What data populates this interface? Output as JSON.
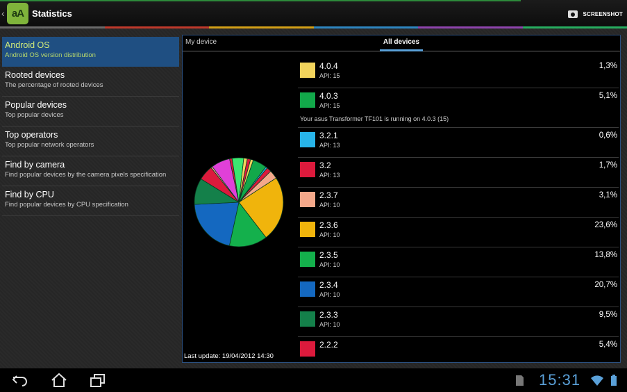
{
  "app": {
    "title": "Statistics",
    "logo_text": "aA",
    "screenshot_label": "SCREENSHOT"
  },
  "sidebar": {
    "items": [
      {
        "title": "Android OS",
        "subtitle": "Android OS version distribution"
      },
      {
        "title": "Rooted devices",
        "subtitle": "The percentage of rooted devices"
      },
      {
        "title": "Popular devices",
        "subtitle": "Top popular devices"
      },
      {
        "title": "Top operators",
        "subtitle": "Top popular network operators"
      },
      {
        "title": "Find by camera",
        "subtitle": "Find popular devices by the camera pixels specification"
      },
      {
        "title": "Find by CPU",
        "subtitle": "Find popular devices by CPU specification"
      }
    ]
  },
  "tabs": {
    "my_device": "My device",
    "all_devices": "All devices"
  },
  "last_update": "Last update: 19/04/2012 14:30",
  "versions": [
    {
      "version": "4.0.4",
      "api": "API: 15",
      "percent": "1,3%",
      "color": "#f2d45c"
    },
    {
      "version": "4.0.3",
      "api": "API: 15",
      "percent": "5,1%",
      "color": "#12a84a",
      "note": "Your asus Transformer TF101 is running on 4.0.3 (15)"
    },
    {
      "version": "3.2.1",
      "api": "API: 13",
      "percent": "0,6%",
      "color": "#28b4e8"
    },
    {
      "version": "3.2",
      "api": "API: 13",
      "percent": "1,7%",
      "color": "#dc1a3c"
    },
    {
      "version": "2.3.7",
      "api": "API: 10",
      "percent": "3,1%",
      "color": "#f4a88a"
    },
    {
      "version": "2.3.6",
      "api": "API: 10",
      "percent": "23,6%",
      "color": "#f0b40c"
    },
    {
      "version": "2.3.5",
      "api": "API: 10",
      "percent": "13,8%",
      "color": "#14b04c"
    },
    {
      "version": "2.3.4",
      "api": "API: 10",
      "percent": "20,7%",
      "color": "#1468c0"
    },
    {
      "version": "2.3.3",
      "api": "API: 10",
      "percent": "9,5%",
      "color": "#14804a"
    },
    {
      "version": "2.2.2",
      "api": "",
      "percent": "5,4%",
      "color": "#dc1a3c"
    }
  ],
  "chart_data": {
    "type": "pie",
    "slices": [
      {
        "value": 23.6,
        "color": "#f0b40c"
      },
      {
        "value": 13.8,
        "color": "#14b04c"
      },
      {
        "value": 20.7,
        "color": "#1468c0"
      },
      {
        "value": 9.5,
        "color": "#14804a"
      },
      {
        "value": 5.4,
        "color": "#dc1a3c"
      },
      {
        "value": 0.6,
        "color": "#f4a88a"
      },
      {
        "value": 6.8,
        "color": "#e040d8"
      },
      {
        "value": 0.9,
        "color": "#dc1a3c"
      },
      {
        "value": 4.2,
        "color": "#3ce870"
      },
      {
        "value": 1.3,
        "color": "#f2d45c"
      },
      {
        "value": 1.2,
        "color": "#dc1a3c"
      },
      {
        "value": 1.0,
        "color": "#f2d45c"
      },
      {
        "value": 5.1,
        "color": "#12a84a"
      },
      {
        "value": 0.6,
        "color": "#28b4e8"
      },
      {
        "value": 1.7,
        "color": "#dc1a3c"
      },
      {
        "value": 3.1,
        "color": "#f4a88a"
      }
    ]
  },
  "status": {
    "time": "15:31"
  },
  "colors": {
    "accent": "#5aa0d8",
    "strip": [
      "#6a6a6a",
      "#c0392b",
      "#d4a017",
      "#2e86c1",
      "#8e44ad",
      "#27ae60"
    ]
  }
}
